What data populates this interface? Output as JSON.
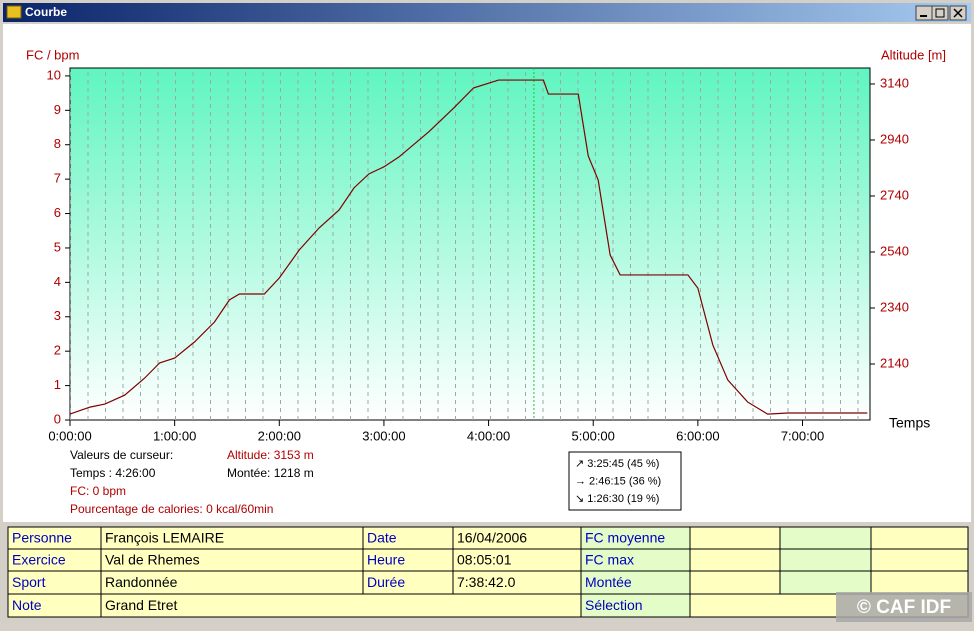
{
  "window": {
    "title": "Courbe"
  },
  "chart_data": {
    "type": "line",
    "y_label": "FC / bpm",
    "y2_label": "Altitude [m]",
    "x_label": "Temps",
    "xlim": [
      0,
      27522
    ],
    "xticks": [
      {
        "value": 0,
        "label": "0:00:00"
      },
      {
        "value": 3600,
        "label": "1:00:00"
      },
      {
        "value": 7200,
        "label": "2:00:00"
      },
      {
        "value": 10800,
        "label": "3:00:00"
      },
      {
        "value": 14400,
        "label": "4:00:00"
      },
      {
        "value": 18000,
        "label": "5:00:00"
      },
      {
        "value": 21600,
        "label": "6:00:00"
      },
      {
        "value": 25200,
        "label": "7:00:00"
      }
    ],
    "ylim": [
      0,
      10.23
    ],
    "yticks": [
      0,
      1,
      2,
      3,
      4,
      5,
      6,
      7,
      8,
      9,
      10
    ],
    "y2lim": [
      1940,
      3197
    ],
    "y2ticks": [
      2140,
      2340,
      2540,
      2740,
      2940,
      3140
    ],
    "cursor_x": 15960,
    "x": [
      0,
      686,
      1200,
      1886,
      2571,
      3086,
      3600,
      4286,
      4971,
      5486,
      5829,
      6686,
      7200,
      7886,
      8571,
      9257,
      9771,
      10286,
      10800,
      11314,
      12343,
      13200,
      13886,
      14743,
      16286,
      16457,
      17486,
      17829,
      18171,
      18583,
      18926,
      21257,
      21600,
      22114,
      22629,
      23314,
      24000,
      24686,
      27429
    ],
    "series": [
      {
        "color": "#800000",
        "axis": "y2",
        "values": [
          1961,
          1986,
          1997,
          2029,
          2090,
          2144,
          2161,
          2219,
          2290,
          2369,
          2390,
          2390,
          2447,
          2547,
          2626,
          2690,
          2769,
          2819,
          2844,
          2879,
          2969,
          3054,
          3126,
          3154,
          3154,
          3104,
          3104,
          2883,
          2797,
          2529,
          2458,
          2458,
          2411,
          2208,
          2083,
          2004,
          1961,
          1965,
          1965
        ]
      }
    ]
  },
  "cursor_panel": {
    "heading": "Valeurs de curseur:",
    "time": "Temps : 4:26:00",
    "altitude": "Altitude: 3153 m",
    "climb": "Montée: 1218 m",
    "fc": "FC: 0 bpm",
    "calories": "Pourcentage de calories: 0 kcal/60min"
  },
  "slope_box": [
    "↗ 3:25:45  (45 %)",
    "→ 2:46:15  (36 %)",
    "↘ 1:26:30  (19 %)"
  ],
  "table": {
    "rows": [
      [
        "Personne",
        "François LEMAIRE",
        "Date",
        "16/04/2006",
        "FC moyenne",
        null,
        null,
        null
      ],
      [
        "Exercice",
        "Val de Rhemes",
        "Heure",
        "08:05:01",
        "FC max",
        null,
        null,
        null
      ],
      [
        "Sport",
        "Randonnée",
        "Durée",
        "7:38:42.0",
        "Montée",
        null,
        null,
        null
      ],
      [
        "Note",
        "Grand Etret",
        "Sélection",
        null
      ]
    ]
  },
  "watermark": "© CAF IDF"
}
